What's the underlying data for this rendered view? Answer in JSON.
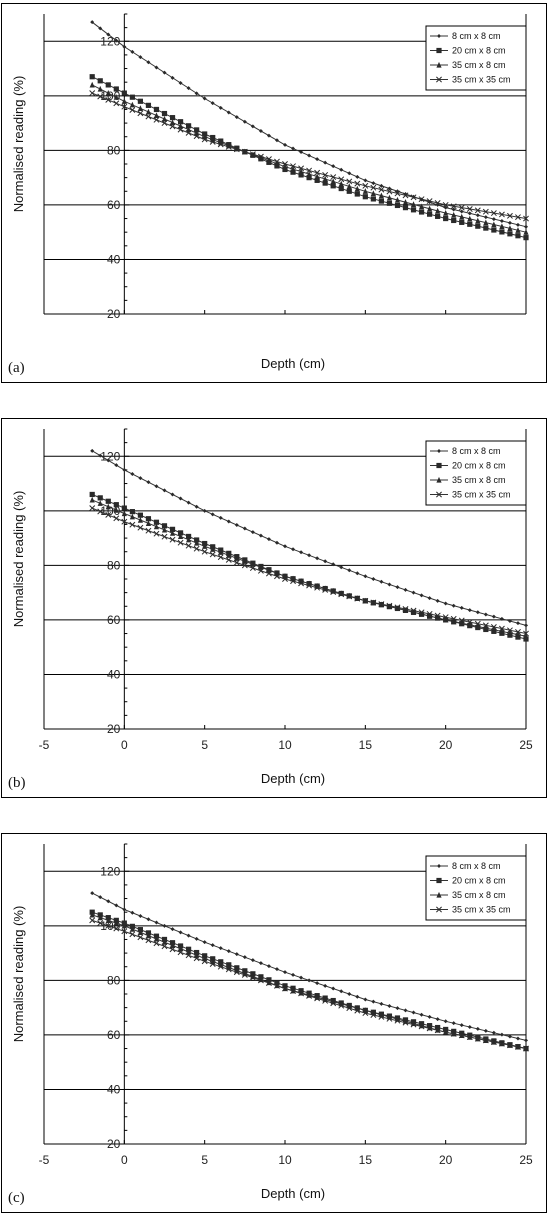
{
  "chart_data": [
    {
      "panel": "(a)",
      "type": "line",
      "xlabel": "Depth (cm)",
      "ylabel": "Normalised reading (%)",
      "x_tick_labels": [],
      "y_ticks": [
        20,
        40,
        60,
        80,
        100,
        120
      ],
      "xlim": [
        -5,
        25
      ],
      "ylim": [
        20,
        130
      ],
      "grid": "horizontal",
      "legend": "top-right",
      "series": [
        {
          "name": "8 cm x 8 cm",
          "marker": "diamond",
          "x": [
            -2,
            0,
            5,
            10,
            15,
            20,
            25
          ],
          "values": [
            127,
            118,
            99,
            82,
            69,
            59,
            52
          ]
        },
        {
          "name": "20 cm x 8 cm",
          "marker": "square",
          "x": [
            -2,
            0,
            5,
            10,
            15,
            20,
            25
          ],
          "values": [
            107,
            101,
            86,
            73,
            63,
            55,
            48
          ]
        },
        {
          "name": "35 cm x 8 cm",
          "marker": "triangle",
          "x": [
            -2,
            0,
            5,
            10,
            15,
            20,
            25
          ],
          "values": [
            104,
            98,
            85,
            74,
            65,
            57,
            50
          ]
        },
        {
          "name": "35 cm x 35 cm",
          "marker": "x",
          "x": [
            -2,
            0,
            5,
            10,
            15,
            20,
            25
          ],
          "values": [
            101,
            96,
            84,
            75,
            67,
            60,
            55
          ]
        }
      ]
    },
    {
      "panel": "(b)",
      "type": "line",
      "xlabel": "Depth (cm)",
      "ylabel": "Normalised reading (%)",
      "x_tick_labels": [
        "-5",
        "0",
        "5",
        "10",
        "15",
        "20",
        "25"
      ],
      "y_ticks": [
        20,
        40,
        60,
        80,
        100,
        120
      ],
      "xlim": [
        -5,
        25
      ],
      "ylim": [
        20,
        130
      ],
      "grid": "horizontal",
      "legend": "top-right",
      "series": [
        {
          "name": "8 cm x 8 cm",
          "marker": "diamond",
          "x": [
            -2,
            0,
            5,
            10,
            15,
            20,
            25
          ],
          "values": [
            122,
            115,
            100,
            87,
            76,
            66,
            58
          ]
        },
        {
          "name": "20 cm x 8 cm",
          "marker": "square",
          "x": [
            -2,
            0,
            5,
            10,
            15,
            20,
            25
          ],
          "values": [
            106,
            101,
            88,
            76,
            67,
            60,
            53
          ]
        },
        {
          "name": "35 cm x 8 cm",
          "marker": "triangle",
          "x": [
            -2,
            0,
            5,
            10,
            15,
            20,
            25
          ],
          "values": [
            104,
            99,
            87,
            76,
            67,
            60,
            54
          ]
        },
        {
          "name": "35 cm x 35 cm",
          "marker": "x",
          "x": [
            -2,
            0,
            5,
            10,
            15,
            20,
            25
          ],
          "values": [
            101,
            96,
            85,
            75,
            67,
            61,
            55
          ]
        }
      ]
    },
    {
      "panel": "(c)",
      "type": "line",
      "xlabel": "Depth (cm)",
      "ylabel": "Normalised reading (%)",
      "x_tick_labels": [
        "-5",
        "0",
        "5",
        "10",
        "15",
        "20",
        "25"
      ],
      "y_ticks": [
        20,
        40,
        60,
        80,
        100,
        120
      ],
      "xlim": [
        -5,
        25
      ],
      "ylim": [
        20,
        130
      ],
      "grid": "horizontal",
      "legend": "top-right",
      "series": [
        {
          "name": "8 cm x 8 cm",
          "marker": "diamond",
          "x": [
            -2,
            0,
            5,
            10,
            15,
            20,
            25
          ],
          "values": [
            112,
            106,
            94,
            83,
            73,
            65,
            58
          ]
        },
        {
          "name": "20 cm x 8 cm",
          "marker": "square",
          "x": [
            -2,
            0,
            5,
            10,
            15,
            20,
            25
          ],
          "values": [
            105,
            101,
            89,
            78,
            69,
            62,
            55
          ]
        },
        {
          "name": "35 cm x 8 cm",
          "marker": "triangle",
          "x": [
            -2,
            0,
            5,
            10,
            15,
            20,
            25
          ],
          "values": [
            104,
            100,
            88,
            77,
            69,
            61,
            55
          ]
        },
        {
          "name": "35 cm x 35 cm",
          "marker": "x",
          "x": [
            -2,
            0,
            5,
            10,
            15,
            20,
            25
          ],
          "values": [
            102,
            98,
            87,
            77,
            68,
            61,
            55
          ]
        }
      ]
    }
  ]
}
